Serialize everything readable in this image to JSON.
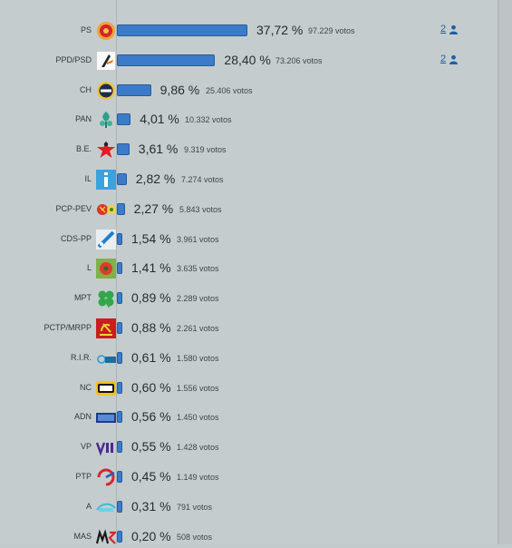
{
  "chart_data": {
    "type": "bar",
    "orientation": "horizontal",
    "votes_unit": "votos",
    "xlim": [
      0,
      40
    ],
    "rows": [
      {
        "party": "PS",
        "pct": "37,72 %",
        "value": 37.72,
        "votes": "97.229",
        "seats": "2",
        "icon": "ps-logo-icon"
      },
      {
        "party": "PPD/PSD",
        "pct": "28,40 %",
        "value": 28.4,
        "votes": "73.206",
        "seats": "2",
        "icon": "psd-logo-icon"
      },
      {
        "party": "CH",
        "pct": "9,86 %",
        "value": 9.86,
        "votes": "25.406",
        "icon": "chega-logo-icon"
      },
      {
        "party": "PAN",
        "pct": "4,01 %",
        "value": 4.01,
        "votes": "10.332",
        "icon": "pan-logo-icon"
      },
      {
        "party": "B.E.",
        "pct": "3,61 %",
        "value": 3.61,
        "votes": "9.319",
        "icon": "be-logo-icon"
      },
      {
        "party": "IL",
        "pct": "2,82 %",
        "value": 2.82,
        "votes": "7.274",
        "icon": "il-logo-icon"
      },
      {
        "party": "PCP-PEV",
        "pct": "2,27 %",
        "value": 2.27,
        "votes": "5.843",
        "icon": "cdu-logo-icon"
      },
      {
        "party": "CDS-PP",
        "pct": "1,54 %",
        "value": 1.54,
        "votes": "3.961",
        "icon": "cds-logo-icon"
      },
      {
        "party": "L",
        "pct": "1,41 %",
        "value": 1.41,
        "votes": "3.635",
        "icon": "livre-logo-icon"
      },
      {
        "party": "MPT",
        "pct": "0,89 %",
        "value": 0.89,
        "votes": "2.289",
        "icon": "mpt-logo-icon"
      },
      {
        "party": "PCTP/MRPP",
        "pct": "0,88 %",
        "value": 0.88,
        "votes": "2.261",
        "icon": "mrpp-logo-icon"
      },
      {
        "party": "R.I.R.",
        "pct": "0,61 %",
        "value": 0.61,
        "votes": "1.580",
        "icon": "rir-logo-icon"
      },
      {
        "party": "NC",
        "pct": "0,60 %",
        "value": 0.6,
        "votes": "1.556",
        "icon": "nc-logo-icon"
      },
      {
        "party": "ADN",
        "pct": "0,56 %",
        "value": 0.56,
        "votes": "1.450",
        "icon": "adn-logo-icon"
      },
      {
        "party": "VP",
        "pct": "0,55 %",
        "value": 0.55,
        "votes": "1.428",
        "icon": "volt-logo-icon"
      },
      {
        "party": "PTP",
        "pct": "0,45 %",
        "value": 0.45,
        "votes": "1.149",
        "icon": "ptp-logo-icon"
      },
      {
        "party": "A",
        "pct": "0,31 %",
        "value": 0.31,
        "votes": "791",
        "icon": "alianca-logo-icon"
      },
      {
        "party": "MAS",
        "pct": "0,20 %",
        "value": 0.2,
        "votes": "508",
        "icon": "mas-logo-icon"
      }
    ]
  }
}
